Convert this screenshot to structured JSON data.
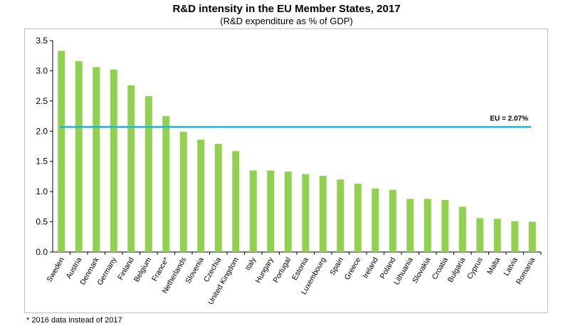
{
  "chart_data": {
    "type": "bar",
    "title": "R&D intensity in the EU Member States, 2017",
    "subtitle": "(R&D expenditure as % of GDP)",
    "categories": [
      "Sweden",
      "Austria",
      "Denmark",
      "Germany",
      "Finland",
      "Belgium",
      "France*",
      "Netherlands",
      "Slovenia",
      "Czechia",
      "United Kingdom",
      "Italy",
      "Hungary",
      "Portugal",
      "Estonia",
      "Luxembourg",
      "Spain",
      "Greece",
      "Ireland",
      "Poland",
      "Lithuania",
      "Slovakia",
      "Croatia",
      "Bulgaria",
      "Cyprus",
      "Malta",
      "Latvia",
      "Romania"
    ],
    "values": [
      3.33,
      3.16,
      3.06,
      3.02,
      2.76,
      2.58,
      2.25,
      1.99,
      1.86,
      1.79,
      1.67,
      1.35,
      1.35,
      1.33,
      1.29,
      1.26,
      1.2,
      1.13,
      1.05,
      1.03,
      0.88,
      0.88,
      0.86,
      0.75,
      0.56,
      0.55,
      0.51,
      0.5
    ],
    "ylim": [
      0,
      3.5
    ],
    "yticks": [
      "0.0",
      "0.5",
      "1.0",
      "1.5",
      "2.0",
      "2.5",
      "3.0",
      "3.5"
    ],
    "bar_color": "#92d050",
    "reference_line": {
      "value": 2.07,
      "label": "EU = 2.07%",
      "color": "#1fb5d9"
    },
    "grid": false,
    "legend": "none"
  },
  "footnote": "* 2016 data instead of 2017"
}
